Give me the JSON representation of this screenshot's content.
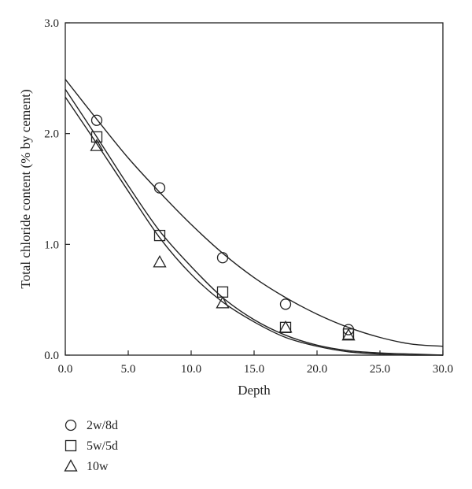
{
  "chart_data": {
    "type": "scatter",
    "title": "",
    "xlabel": "Depth",
    "ylabel": "Total chloride content (% by cement)",
    "xlim": [
      0,
      30
    ],
    "ylim": [
      0,
      3
    ],
    "xticks": [
      "0.0",
      "5.0",
      "10.0",
      "15.0",
      "20.0",
      "25.0",
      "30.0"
    ],
    "yticks": [
      "0.0",
      "1.0",
      "2.0",
      "3.0"
    ],
    "grid": false,
    "legend_position": "bottom-left",
    "series": [
      {
        "name": "2w/8d",
        "marker": "circle",
        "x": [
          2.5,
          7.5,
          12.5,
          17.5,
          22.5
        ],
        "y": [
          2.12,
          1.51,
          0.88,
          0.46,
          0.23
        ],
        "fit": {
          "x": [
            0,
            2.5,
            5,
            7.5,
            10,
            12.5,
            15,
            17.5,
            20,
            22.5,
            25,
            27.5,
            30
          ],
          "y": [
            2.49,
            2.13,
            1.78,
            1.47,
            1.18,
            0.92,
            0.7,
            0.52,
            0.37,
            0.25,
            0.16,
            0.1,
            0.08
          ]
        }
      },
      {
        "name": "5w/5d",
        "marker": "square",
        "x": [
          2.5,
          7.5,
          12.5,
          17.5,
          22.5
        ],
        "y": [
          1.97,
          1.08,
          0.57,
          0.25,
          0.19
        ],
        "fit": {
          "x": [
            0,
            2.5,
            5,
            7.5,
            10,
            12.5,
            15,
            17.5,
            20,
            22.5,
            25,
            27.5,
            30
          ],
          "y": [
            2.4,
            1.97,
            1.53,
            1.12,
            0.8,
            0.52,
            0.32,
            0.18,
            0.09,
            0.04,
            0.02,
            0.01,
            0.0
          ]
        }
      },
      {
        "name": "10w",
        "marker": "triangle",
        "x": [
          2.5,
          7.5,
          12.5,
          17.5,
          22.5
        ],
        "y": [
          1.89,
          0.84,
          0.47,
          0.25,
          0.18
        ],
        "fit": {
          "x": [
            0,
            2.5,
            5,
            7.5,
            10,
            12.5,
            15,
            17.5,
            20,
            22.5,
            25,
            27.5,
            30
          ],
          "y": [
            2.33,
            1.91,
            1.48,
            1.06,
            0.73,
            0.48,
            0.3,
            0.16,
            0.08,
            0.03,
            0.01,
            0.0,
            0.0
          ]
        }
      }
    ]
  }
}
